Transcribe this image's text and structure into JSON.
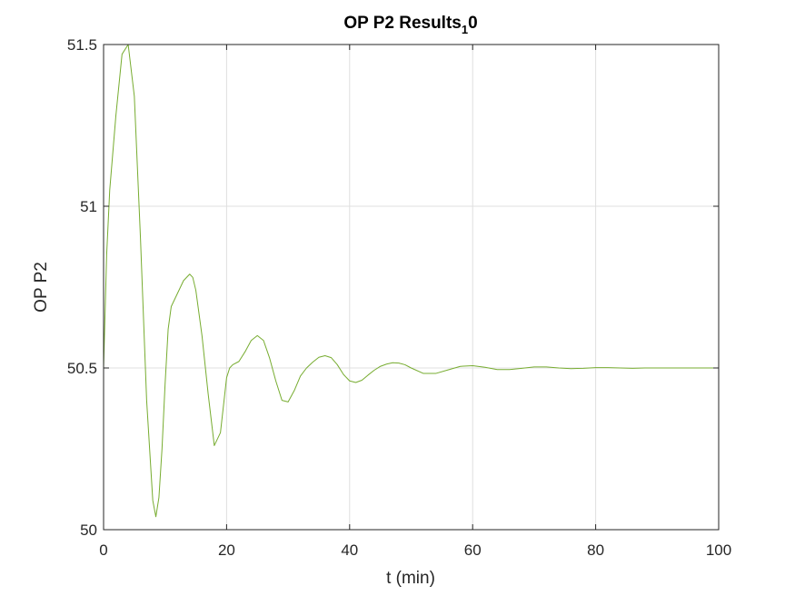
{
  "chart_data": {
    "type": "line",
    "title": {
      "main": "OP P2 Results",
      "subscript": "1",
      "suffix": "0"
    },
    "xlabel": "t (min)",
    "ylabel": "OP P2",
    "xlim": [
      0,
      100
    ],
    "ylim": [
      50,
      51.5
    ],
    "xticks": [
      0,
      20,
      40,
      60,
      80,
      100
    ],
    "xtick_labels": [
      "0",
      "20",
      "40",
      "60",
      "80",
      "100"
    ],
    "yticks": [
      50,
      50.5,
      51,
      51.5
    ],
    "ytick_labels": [
      "50",
      "50.5",
      "51",
      "51.5"
    ],
    "grid": true,
    "series": [
      {
        "color": "#77AC30",
        "x": [
          0,
          0.5,
          1,
          2,
          3,
          4,
          5,
          6,
          7,
          8,
          8.5,
          9,
          9.5,
          10,
          10.5,
          11,
          12,
          13,
          14,
          14.5,
          15,
          16,
          17,
          18,
          19,
          20,
          20.5,
          21,
          22,
          23,
          24,
          25,
          26,
          27,
          28,
          29,
          30,
          31,
          32,
          33,
          34,
          35,
          36,
          37,
          38,
          39,
          40,
          41,
          42,
          43,
          44,
          45,
          46,
          47,
          48,
          49,
          50,
          52,
          54,
          56,
          58,
          60,
          62,
          64,
          66,
          68,
          70,
          72,
          74,
          76,
          78,
          80,
          82,
          84,
          86,
          88,
          90,
          92,
          94,
          96,
          98,
          100
        ],
        "y": [
          50.5,
          50.85,
          51.05,
          51.28,
          51.47,
          51.5,
          51.34,
          50.9,
          50.4,
          50.09,
          50.04,
          50.1,
          50.25,
          50.45,
          50.62,
          50.69,
          50.73,
          50.77,
          50.79,
          50.78,
          50.74,
          50.6,
          50.42,
          50.26,
          50.3,
          50.47,
          50.5,
          50.51,
          50.52,
          50.55,
          50.585,
          50.6,
          50.585,
          50.53,
          50.46,
          50.4,
          50.395,
          50.43,
          50.475,
          50.5,
          50.518,
          50.533,
          50.538,
          50.532,
          50.51,
          50.48,
          50.46,
          50.455,
          50.462,
          50.478,
          50.493,
          50.505,
          50.512,
          50.516,
          50.515,
          50.51,
          50.5,
          50.483,
          50.483,
          50.494,
          50.505,
          50.507,
          50.502,
          50.495,
          50.495,
          50.499,
          50.503,
          50.503,
          50.5,
          50.498,
          50.499,
          50.501,
          50.501,
          50.5,
          50.499,
          50.5,
          50.5,
          50.5,
          50.5,
          50.5,
          50.5,
          50.5
        ]
      }
    ]
  }
}
